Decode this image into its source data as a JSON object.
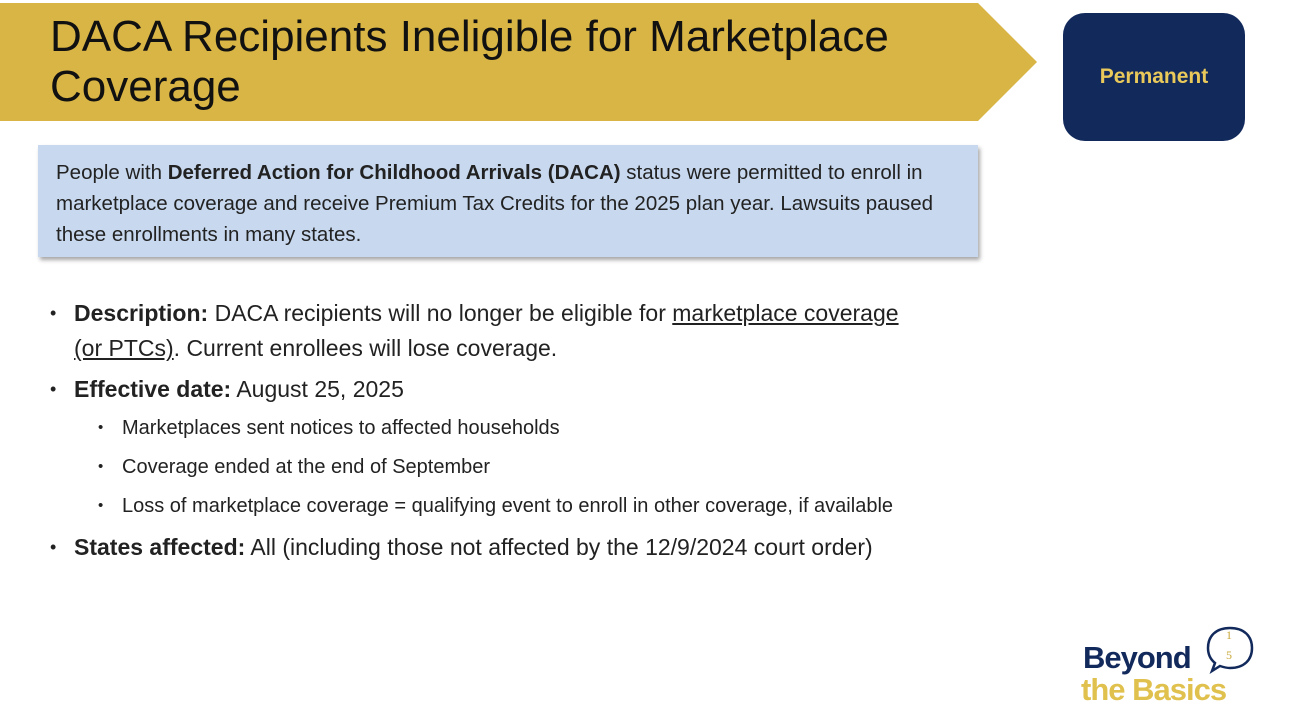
{
  "title": "DACA Recipients Ineligible for Marketplace Coverage",
  "status": "Permanent",
  "summary": {
    "prefix": "People with ",
    "bold": "Deferred Action for Childhood Arrivals (DACA)",
    "suffix": " status were permitted to enroll in marketplace coverage and receive Premium Tax Credits for the 2025 plan year. Lawsuits paused these enrollments in many states."
  },
  "bullets": {
    "description": {
      "label": "Description:",
      "text_before": " DACA recipients will no longer be eligible for ",
      "link": "marketplace coverage (or PTCs)",
      "text_after": ". Current enrollees will lose coverage."
    },
    "effective": {
      "label": "Effective date:",
      "text": " August 25, 2025",
      "subs": [
        "Marketplaces sent notices to affected households",
        "Coverage ended at the end of September",
        "Loss of marketplace coverage = qualifying event to enroll in other coverage, if available"
      ]
    },
    "states": {
      "label": "States affected:",
      "text": " All (including those not affected by the 12/9/2024 court order)"
    }
  },
  "logo": {
    "line1": "Beyond",
    "line2": "the Basics",
    "badge_top": "1",
    "badge_bottom": "5"
  },
  "colors": {
    "banner": "#d9b545",
    "status_bg": "#12295c",
    "status_text": "#e9c95a",
    "summary_bg": "#c8d9ef"
  }
}
